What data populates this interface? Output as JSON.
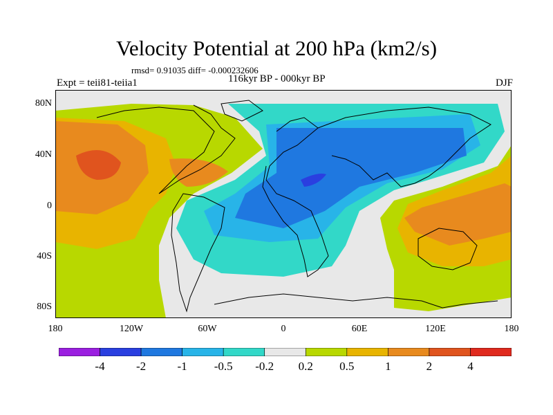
{
  "title": "Velocity Potential at 200 hPa (km2/s)",
  "stats": "rmsd= 0.91035 diff= -0.000232606",
  "period": "116kyr BP - 000kyr BP",
  "experiment": "Expt = teii81-teiia1",
  "season": "DJF",
  "lat_labels": [
    "80N",
    "40N",
    "0",
    "40S",
    "80S"
  ],
  "lon_labels": [
    "180",
    "120W",
    "60W",
    "0",
    "60E",
    "120E",
    "180"
  ],
  "colorbar": {
    "labels": [
      "-4",
      "-2",
      "-1",
      "-0.5",
      "-0.2",
      "0.2",
      "0.5",
      "1",
      "2",
      "4"
    ],
    "colors": [
      "#9b1fe0",
      "#2a3fe0",
      "#1f78e0",
      "#28b4e8",
      "#32d8c8",
      "#e8e8e8",
      "#b8d800",
      "#e8b400",
      "#e88a1e",
      "#e0541e",
      "#e02a1e"
    ]
  },
  "map_colors": {
    "neutral": "#e8e8e8",
    "positive_weak": "#b8d800",
    "positive_mid": "#e8b400",
    "positive_strong": "#e88a1e",
    "positive_max": "#e0541e",
    "negative_weak": "#32d8c8",
    "negative_mid": "#28b4e8",
    "negative_strong": "#1f78e0",
    "negative_max": "#2a3fe0",
    "coastline": "#000000"
  }
}
